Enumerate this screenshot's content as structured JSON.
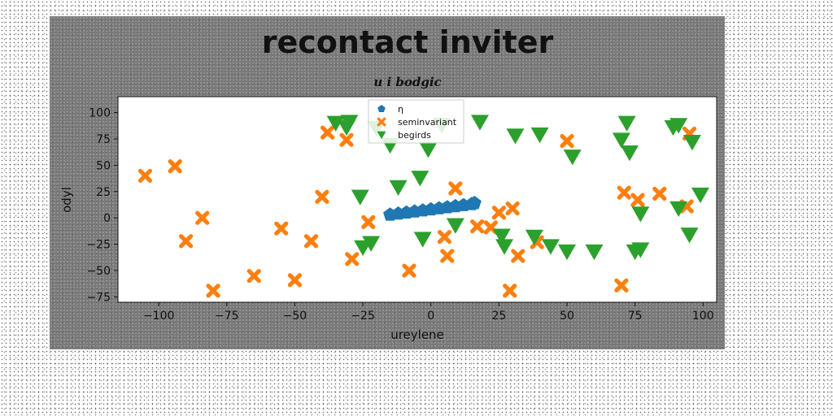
{
  "chart_data": {
    "type": "scatter",
    "title": "recontact inviter",
    "subtitle": "u i bodgic",
    "xlabel": "ureylene",
    "ylabel": "odyl",
    "xlim": [
      -115,
      105
    ],
    "ylim": [
      -80,
      115
    ],
    "xticks": [
      -100,
      -75,
      -50,
      -25,
      0,
      25,
      50,
      75,
      100
    ],
    "yticks": [
      -75,
      -50,
      -25,
      0,
      25,
      50,
      75,
      100
    ],
    "xtick_labels": [
      "−100",
      "−75",
      "−50",
      "−25",
      "0",
      "25",
      "50",
      "75",
      "100"
    ],
    "ytick_labels": [
      "−75",
      "−50",
      "−25",
      "0",
      "25",
      "50",
      "75",
      "100"
    ],
    "grid": false,
    "legend_position": "top-center",
    "series": [
      {
        "name": "η",
        "marker": "pentagon",
        "color": "#1f77b4",
        "x": [
          -15,
          -12,
          -9,
          -6,
          -3,
          0,
          3,
          6,
          9,
          12,
          15,
          16
        ],
        "y": [
          3,
          4,
          5,
          6,
          7,
          8,
          9,
          10,
          11,
          12,
          13,
          14
        ]
      },
      {
        "name": "seminvariant",
        "marker": "x",
        "color": "#ff7f0e",
        "x": [
          -105,
          -94,
          -90,
          -84,
          -80,
          -65,
          -55,
          -50,
          -44,
          -40,
          -38,
          -31,
          -29,
          -23,
          -8,
          5,
          6,
          9,
          17,
          22,
          25,
          30,
          29,
          32,
          39,
          50,
          70,
          71,
          76,
          84,
          94,
          95
        ],
        "y": [
          40,
          49,
          -22,
          0,
          -69,
          -55,
          -10,
          -59,
          -22,
          20,
          81,
          74,
          -39,
          -4,
          -50,
          -18,
          -36,
          28,
          -8,
          -9,
          5,
          9,
          -69,
          -36,
          -23,
          73,
          -64,
          24,
          17,
          23,
          11,
          80
        ]
      },
      {
        "name": "begirds",
        "marker": "triangle-down",
        "color": "#2ca02c",
        "x": [
          -35,
          -31,
          -30,
          -26,
          -25,
          -22,
          -20,
          -15,
          -12,
          -4,
          -3,
          -1,
          4,
          9,
          18,
          26,
          27,
          31,
          38,
          40,
          44,
          50,
          52,
          60,
          70,
          72,
          73,
          75,
          77,
          77,
          89,
          91,
          91,
          95,
          96,
          99
        ],
        "y": [
          90,
          86,
          91,
          20,
          -28,
          -24,
          85,
          69,
          29,
          38,
          -20,
          65,
          88,
          -7,
          91,
          -17,
          -27,
          78,
          -18,
          79,
          -27,
          -32,
          58,
          -32,
          74,
          90,
          62,
          -32,
          4,
          -30,
          86,
          88,
          9,
          -16,
          72,
          22
        ]
      }
    ]
  }
}
